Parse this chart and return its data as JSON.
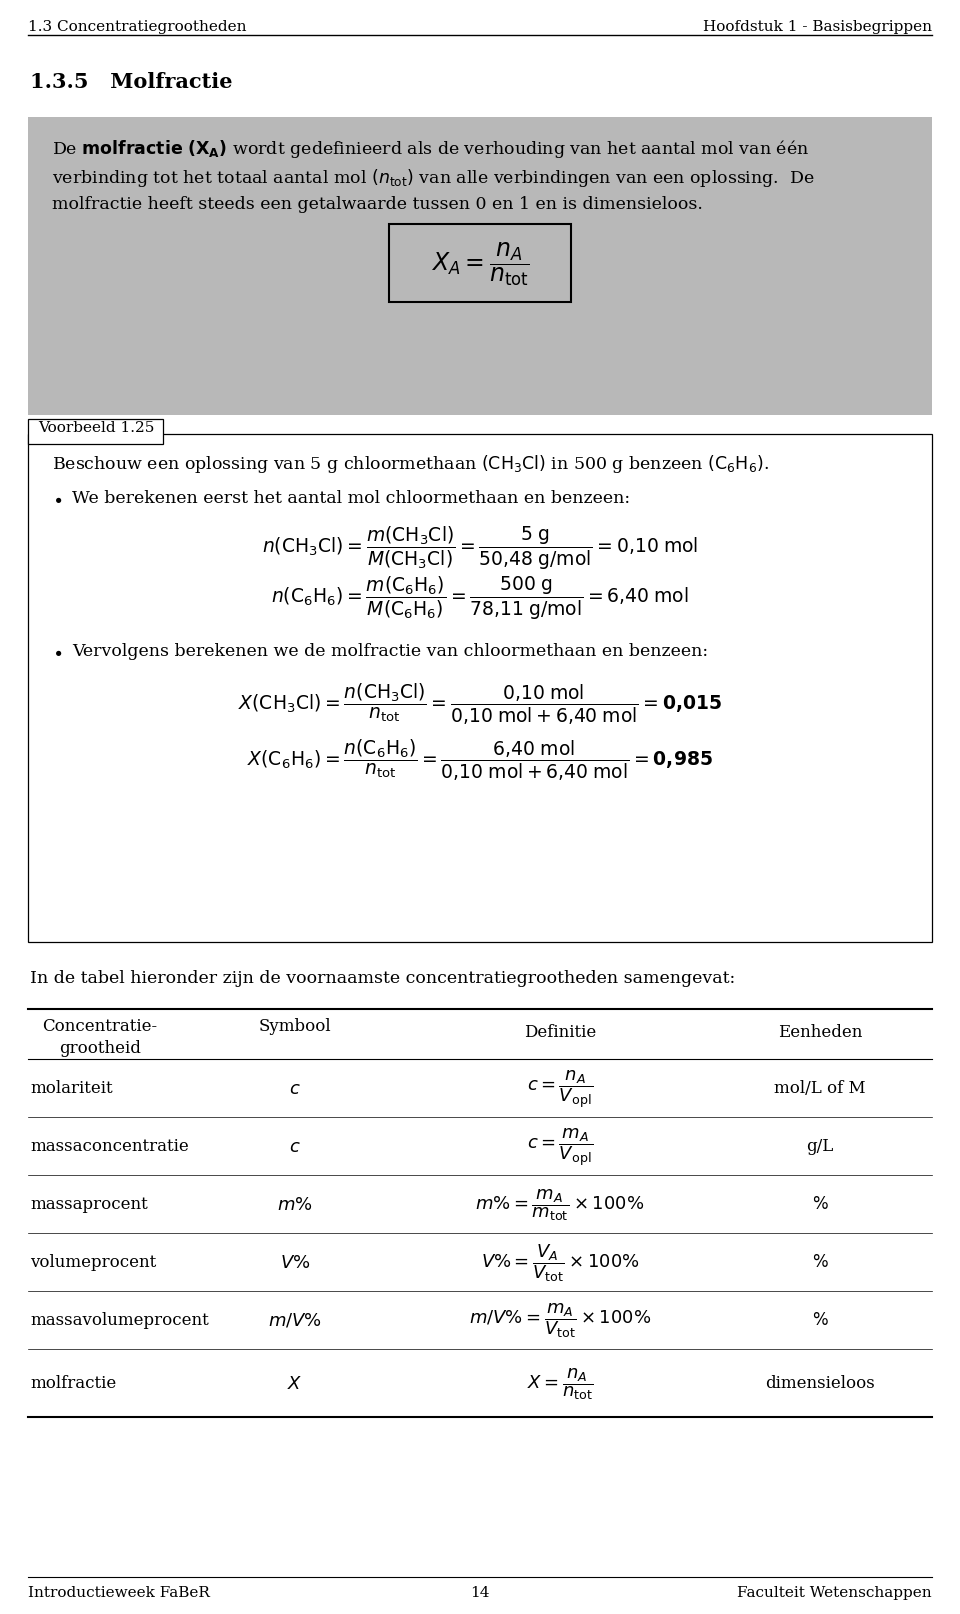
{
  "header_left": "1.3 Concentratiegrootheden",
  "header_right": "Hoofdstuk 1 - Basisbegrippen",
  "section_title": "1.3.5   Molfractie",
  "footer_left": "Introductieweek FaBeR",
  "footer_center": "14",
  "footer_right": "Faculteit Wetenschappen",
  "bg_color": "#ffffff",
  "gray_box_color": "#b8b8b8"
}
